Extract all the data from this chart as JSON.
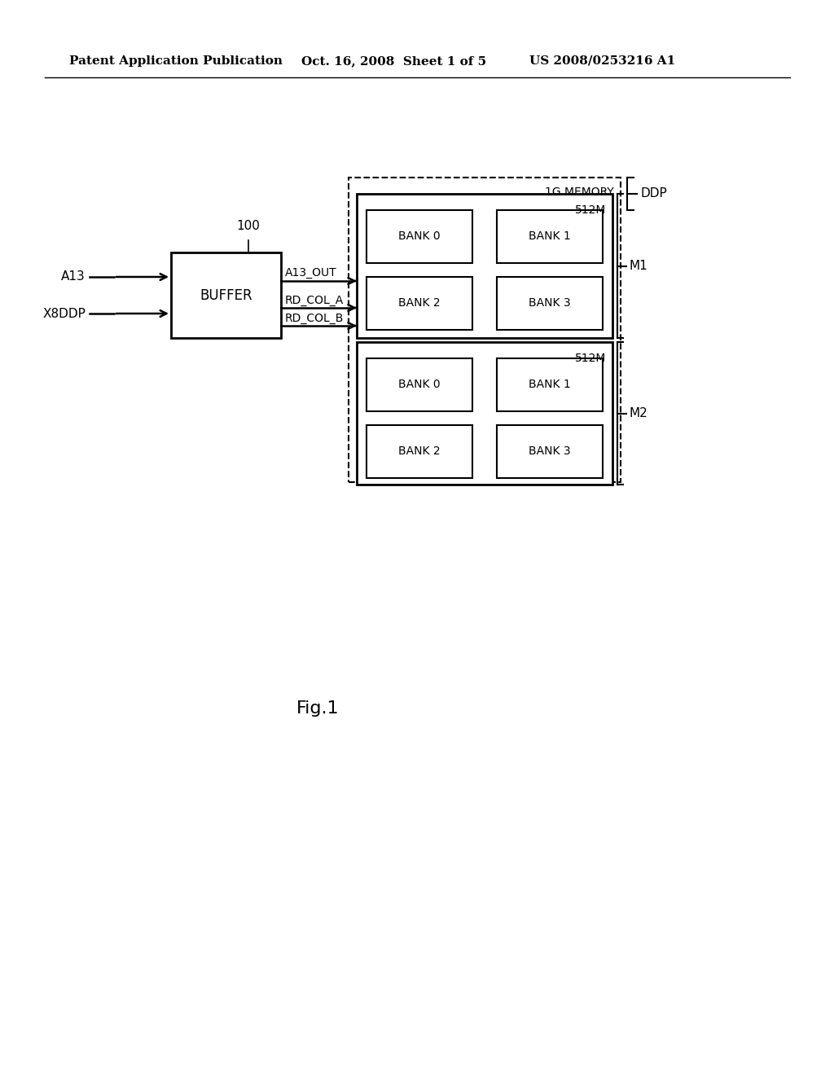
{
  "bg_color": "#ffffff",
  "header_left": "Patent Application Publication",
  "header_mid": "Oct. 16, 2008  Sheet 1 of 5",
  "header_right": "US 2008/0253216 A1",
  "fig_label": "Fig.1",
  "buffer_label": "100",
  "buffer_text": "BUFFER",
  "input_labels": [
    "A13",
    "X8DDP"
  ],
  "output_labels": [
    "A13_OUT",
    "RD_COL_A",
    "RD_COL_B"
  ],
  "memory_label": "1G MEMORY",
  "chip1_label": "512M",
  "chip2_label": "512M",
  "bank_labels_top": [
    "BANK 0",
    "BANK 1",
    "BANK 2",
    "BANK 3"
  ],
  "bank_labels_bot": [
    "BANK 0",
    "BANK 1",
    "BANK 2",
    "BANK 3"
  ],
  "ddp_label": "DDP",
  "m1_label": "M1",
  "m2_label": "M2"
}
